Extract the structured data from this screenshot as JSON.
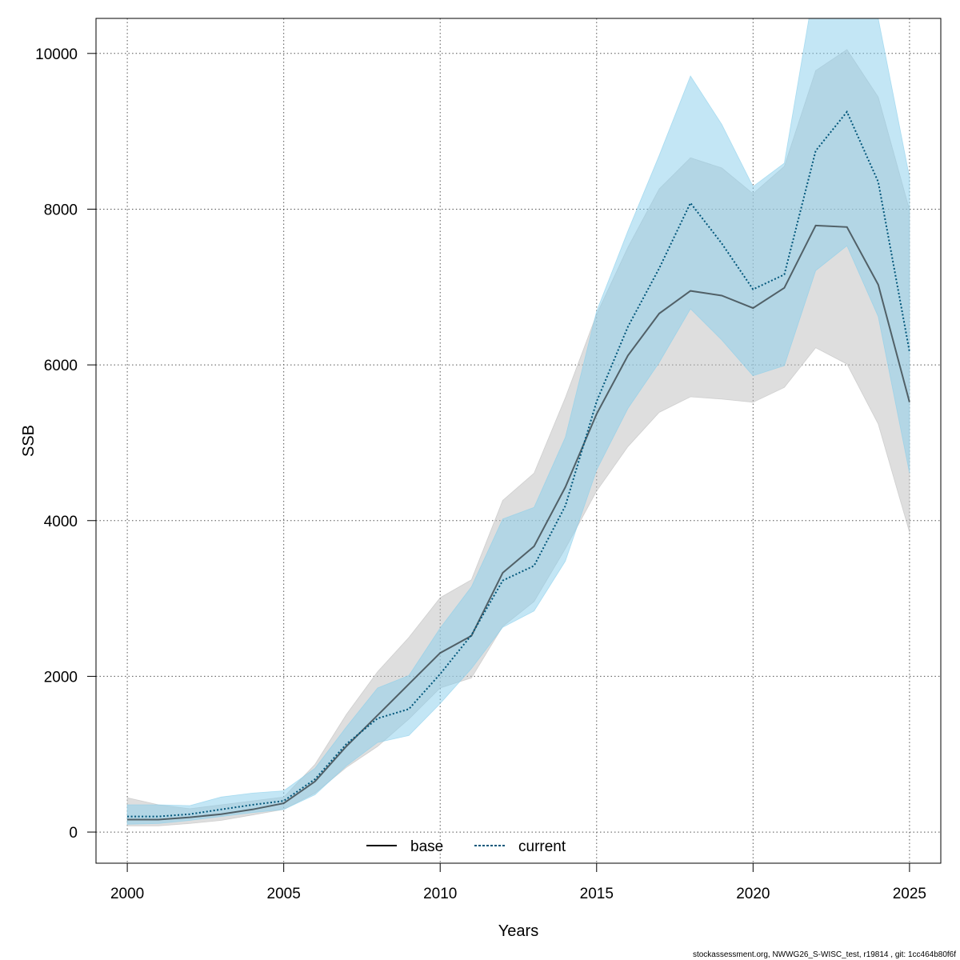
{
  "chart_data": {
    "type": "line",
    "xlabel": "Years",
    "ylabel": "SSB",
    "xlim": [
      1999,
      2026
    ],
    "ylim": [
      -400,
      10450
    ],
    "x_ticks": [
      2000,
      2005,
      2010,
      2015,
      2020,
      2025
    ],
    "y_ticks": [
      0,
      2000,
      4000,
      6000,
      8000,
      10000
    ],
    "grid": true,
    "legend_position": "bottom",
    "x": [
      2000,
      2001,
      2002,
      2003,
      2004,
      2005,
      2006,
      2007,
      2008,
      2009,
      2010,
      2011,
      2012,
      2013,
      2014,
      2015,
      2016,
      2017,
      2018,
      2019,
      2020,
      2021,
      2022,
      2023,
      2024,
      2025
    ],
    "series": [
      {
        "name": "base",
        "color": "#000000",
        "band_color": "#bdbdbd",
        "line_style": "solid",
        "values": [
          160,
          160,
          190,
          230,
          290,
          370,
          650,
          1100,
          1500,
          1900,
          2300,
          2520,
          3330,
          3670,
          4430,
          5370,
          6120,
          6660,
          6950,
          6890,
          6730,
          6990,
          7790,
          7770,
          7030,
          5520
        ],
        "lower": [
          80,
          80,
          110,
          150,
          220,
          290,
          500,
          830,
          1100,
          1450,
          1850,
          1980,
          2640,
          2960,
          3640,
          4380,
          4950,
          5390,
          5590,
          5560,
          5520,
          5710,
          6220,
          6010,
          5240,
          3850
        ],
        "upper": [
          440,
          350,
          300,
          350,
          400,
          450,
          870,
          1510,
          2060,
          2500,
          3010,
          3240,
          4260,
          4610,
          5580,
          6650,
          7510,
          8260,
          8660,
          8530,
          8200,
          8550,
          9780,
          10050,
          9440,
          7990
        ]
      },
      {
        "name": "current",
        "color": "#00567a",
        "band_color": "#87ceeb",
        "line_style": "dotted",
        "values": [
          200,
          200,
          230,
          290,
          350,
          400,
          680,
          1130,
          1460,
          1580,
          2030,
          2530,
          3230,
          3420,
          4190,
          5530,
          6490,
          7240,
          8080,
          7560,
          6970,
          7160,
          8750,
          9250,
          8350,
          6170
        ],
        "lower": [
          100,
          110,
          150,
          200,
          250,
          290,
          480,
          850,
          1150,
          1240,
          1650,
          2100,
          2630,
          2840,
          3480,
          4650,
          5440,
          6030,
          6720,
          6320,
          5860,
          5990,
          7210,
          7530,
          6620,
          4610
        ],
        "upper": [
          350,
          350,
          340,
          450,
          500,
          530,
          820,
          1350,
          1850,
          2010,
          2620,
          3150,
          4020,
          4170,
          5070,
          6690,
          7720,
          8690,
          9710,
          9090,
          8290,
          8590,
          10960,
          11310,
          10450,
          8410
        ]
      }
    ],
    "footer": "stockassessment.org, NWWG26_S-WISC_test, r19814 , git: 1cc464b80f6f"
  }
}
